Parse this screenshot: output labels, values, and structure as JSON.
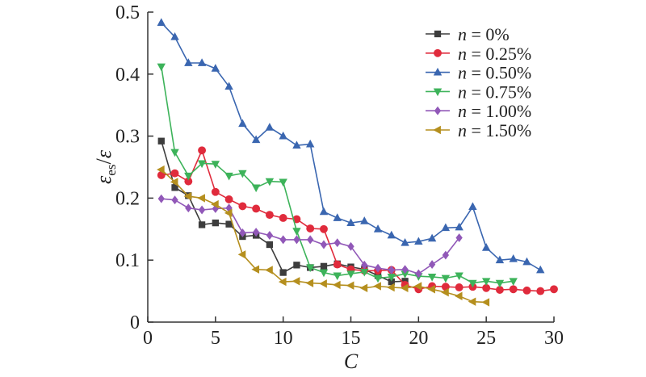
{
  "chart_data": {
    "type": "line",
    "xlabel": "C",
    "ylabel": {
      "base": "ε",
      "sub": "es",
      "denom": "ε"
    },
    "xlim": [
      0,
      30
    ],
    "ylim": [
      0,
      0.5
    ],
    "xticks": [
      "0",
      "5",
      "10",
      "15",
      "20",
      "25",
      "30"
    ],
    "yticks": [
      "0",
      "0.1",
      "0.2",
      "0.3",
      "0.4",
      "0.5"
    ],
    "grid": false,
    "legend_position": "top-right",
    "series": [
      {
        "name": "n = 0%",
        "label_var": "n",
        "label_val": "= 0%",
        "color": "#3d3d3d",
        "marker": "square",
        "x": [
          1,
          2,
          3,
          4,
          5,
          6,
          7,
          8,
          9,
          10,
          11,
          12,
          13,
          14,
          15,
          16,
          17,
          18,
          19
        ],
        "y": [
          0.292,
          0.217,
          0.204,
          0.157,
          0.16,
          0.158,
          0.138,
          0.14,
          0.125,
          0.08,
          0.092,
          0.088,
          0.09,
          0.094,
          0.089,
          0.085,
          0.075,
          0.065,
          0.066
        ]
      },
      {
        "name": "n = 0.25%",
        "label_var": "n",
        "label_val": "= 0.25%",
        "color": "#e02b3c",
        "marker": "circle",
        "x": [
          1,
          2,
          3,
          4,
          5,
          6,
          7,
          8,
          9,
          10,
          11,
          12,
          13,
          14,
          15,
          16,
          17,
          18,
          19,
          20,
          21,
          22,
          23,
          24,
          25,
          26,
          27,
          28,
          29,
          30
        ],
        "y": [
          0.237,
          0.24,
          0.227,
          0.277,
          0.21,
          0.198,
          0.187,
          0.183,
          0.173,
          0.168,
          0.166,
          0.151,
          0.15,
          0.093,
          0.085,
          0.083,
          0.083,
          0.084,
          0.06,
          0.053,
          0.058,
          0.057,
          0.056,
          0.057,
          0.055,
          0.052,
          0.053,
          0.051,
          0.05,
          0.053
        ]
      },
      {
        "name": "n = 0.50%",
        "label_var": "n",
        "label_val": "= 0.50%",
        "color": "#3a66b0",
        "marker": "triangle-up",
        "x": [
          1,
          2,
          3,
          4,
          5,
          6,
          7,
          8,
          9,
          10,
          11,
          12,
          13,
          14,
          15,
          16,
          17,
          18,
          19,
          20,
          21,
          22,
          23,
          24,
          25,
          26,
          27,
          28,
          29
        ],
        "y": [
          0.483,
          0.46,
          0.418,
          0.418,
          0.409,
          0.38,
          0.32,
          0.294,
          0.314,
          0.3,
          0.285,
          0.287,
          0.178,
          0.168,
          0.16,
          0.163,
          0.15,
          0.14,
          0.128,
          0.13,
          0.135,
          0.152,
          0.153,
          0.186,
          0.12,
          0.1,
          0.102,
          0.097,
          0.084
        ]
      },
      {
        "name": "n = 0.75%",
        "label_var": "n",
        "label_val": "= 0.75%",
        "color": "#3db35a",
        "marker": "triangle-down",
        "x": [
          1,
          2,
          3,
          4,
          5,
          6,
          7,
          8,
          9,
          10,
          11,
          12,
          13,
          14,
          15,
          16,
          17,
          18,
          19,
          20,
          21,
          22,
          23,
          24,
          25,
          26,
          27
        ],
        "y": [
          0.412,
          0.274,
          0.236,
          0.256,
          0.255,
          0.236,
          0.24,
          0.217,
          0.227,
          0.226,
          0.147,
          0.088,
          0.08,
          0.075,
          0.078,
          0.081,
          0.071,
          0.073,
          0.078,
          0.074,
          0.073,
          0.071,
          0.075,
          0.063,
          0.066,
          0.063,
          0.066
        ]
      },
      {
        "name": "n = 1.00%",
        "label_var": "n",
        "label_val": "= 1.00%",
        "color": "#9158b8",
        "marker": "diamond",
        "x": [
          1,
          2,
          3,
          4,
          5,
          6,
          7,
          8,
          9,
          10,
          11,
          12,
          13,
          14,
          15,
          16,
          17,
          18,
          19,
          20,
          21,
          22,
          23
        ],
        "y": [
          0.199,
          0.197,
          0.184,
          0.181,
          0.183,
          0.184,
          0.144,
          0.145,
          0.14,
          0.133,
          0.133,
          0.133,
          0.125,
          0.128,
          0.122,
          0.092,
          0.087,
          0.084,
          0.085,
          0.078,
          0.093,
          0.108,
          0.136
        ]
      },
      {
        "name": "n = 1.50%",
        "label_var": "n",
        "label_val": "= 1.50%",
        "color": "#b58f1e",
        "marker": "triangle-left",
        "x": [
          1,
          2,
          3,
          4,
          5,
          6,
          7,
          8,
          9,
          10,
          11,
          12,
          13,
          14,
          15,
          16,
          17,
          18,
          19,
          20,
          21,
          22,
          23,
          24,
          25
        ],
        "y": [
          0.246,
          0.226,
          0.203,
          0.2,
          0.19,
          0.176,
          0.109,
          0.085,
          0.084,
          0.065,
          0.066,
          0.063,
          0.062,
          0.06,
          0.059,
          0.055,
          0.058,
          0.056,
          0.055,
          0.058,
          0.053,
          0.048,
          0.042,
          0.033,
          0.032
        ]
      }
    ]
  }
}
